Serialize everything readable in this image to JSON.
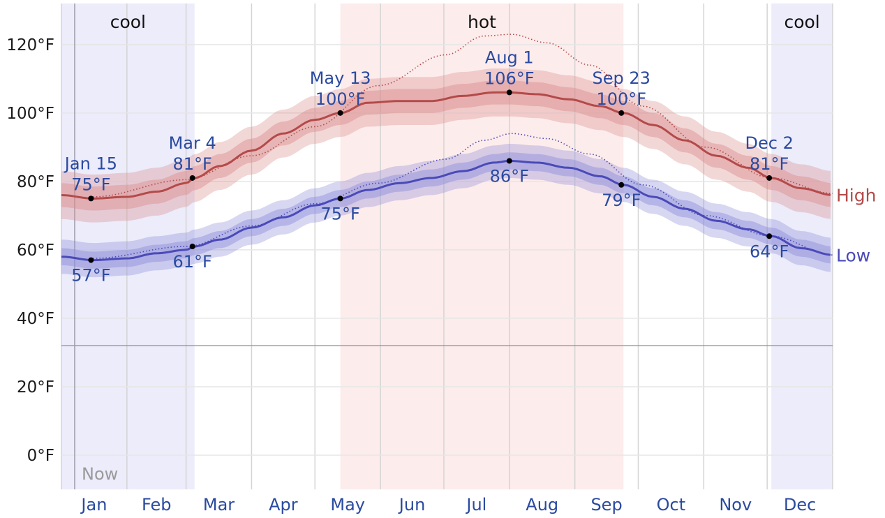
{
  "chart_data": {
    "type": "line",
    "units": "°F",
    "y_ticks": [
      0,
      20,
      40,
      60,
      80,
      100,
      120
    ],
    "y_tick_labels": [
      "0°F",
      "20°F",
      "40°F",
      "60°F",
      "80°F",
      "100°F",
      "120°F"
    ],
    "ylim": [
      -10,
      132
    ],
    "months": [
      "Jan",
      "Feb",
      "Mar",
      "Apr",
      "May",
      "Jun",
      "Jul",
      "Aug",
      "Sep",
      "Oct",
      "Nov",
      "Dec"
    ],
    "freezing_line": 32,
    "now_label": "Now",
    "now_day": 1,
    "seasons": [
      {
        "name": "cool",
        "start_day": 0,
        "end_day": 63,
        "color": "#ececfb"
      },
      {
        "name": "hot",
        "start_day": 132,
        "end_day": 266,
        "color": "#fdecec"
      },
      {
        "name": "cool",
        "start_day": 336,
        "end_day": 365,
        "color": "#ececfb"
      }
    ],
    "series": [
      {
        "name": "High",
        "color": "#b44a4a",
        "band_color": "#d98c8c",
        "days": [
          0,
          15,
          31,
          45,
          59,
          63,
          75,
          90,
          105,
          120,
          132,
          145,
          160,
          175,
          190,
          205,
          212,
          225,
          240,
          255,
          266,
          280,
          295,
          310,
          325,
          336,
          350,
          365
        ],
        "values": [
          76,
          75,
          75.5,
          77,
          79.5,
          81,
          84.5,
          89,
          94,
          98,
          100,
          103,
          103.5,
          103.5,
          105,
          106,
          106,
          105.5,
          104,
          102,
          100,
          96.5,
          92,
          87.5,
          84,
          81,
          78,
          76
        ],
        "inner_band": 3.5,
        "outer_band": 7,
        "dotted_days": [
          15,
          59,
          90,
          120,
          150,
          182,
          200,
          213,
          230,
          250,
          275,
          305,
          336,
          365
        ],
        "dotted_values": [
          75.5,
          80.5,
          87.5,
          96,
          108,
          117,
          122.5,
          123,
          120.5,
          114,
          102,
          90,
          81,
          76.5
        ]
      },
      {
        "name": "Low",
        "color": "#4a4ab8",
        "band_color": "#8c8cd9",
        "days": [
          0,
          15,
          31,
          45,
          59,
          63,
          75,
          90,
          105,
          120,
          132,
          145,
          160,
          175,
          190,
          205,
          212,
          225,
          240,
          255,
          266,
          280,
          295,
          310,
          325,
          336,
          350,
          365
        ],
        "values": [
          58,
          57,
          57.5,
          59,
          60,
          61,
          63,
          66.5,
          69.5,
          73,
          75,
          77.5,
          79.5,
          81,
          83,
          85.5,
          86,
          85.5,
          84,
          81.5,
          79,
          75.5,
          72,
          68.5,
          66,
          64,
          60.5,
          58.5
        ],
        "inner_band": 2.5,
        "outer_band": 5,
        "dotted_days": [
          15,
          59,
          90,
          120,
          150,
          182,
          200,
          213,
          230,
          250,
          275,
          305,
          336,
          365
        ],
        "dotted_values": [
          57.5,
          61,
          67,
          73.5,
          79.5,
          86.5,
          92,
          94,
          92.5,
          88,
          79,
          70,
          64,
          58.5
        ]
      }
    ],
    "annotations": [
      {
        "series": "High",
        "day": 14,
        "value": 75,
        "date": "Jan 15",
        "label": "75°F",
        "pos": "above"
      },
      {
        "series": "High",
        "day": 62,
        "value": 81,
        "date": "Mar 4",
        "label": "81°F",
        "pos": "above"
      },
      {
        "series": "High",
        "day": 132,
        "value": 100,
        "date": "May 13",
        "label": "100°F",
        "pos": "above"
      },
      {
        "series": "High",
        "day": 212,
        "value": 106,
        "date": "Aug 1",
        "label": "106°F",
        "pos": "above"
      },
      {
        "series": "High",
        "day": 265,
        "value": 100,
        "date": "Sep 23",
        "label": "100°F",
        "pos": "above"
      },
      {
        "series": "High",
        "day": 335,
        "value": 81,
        "date": "Dec 2",
        "label": "81°F",
        "pos": "above"
      },
      {
        "series": "Low",
        "day": 14,
        "value": 57,
        "label": "57°F",
        "pos": "below"
      },
      {
        "series": "Low",
        "day": 62,
        "value": 61,
        "label": "61°F",
        "pos": "below"
      },
      {
        "series": "Low",
        "day": 132,
        "value": 75,
        "label": "75°F",
        "pos": "below"
      },
      {
        "series": "Low",
        "day": 212,
        "value": 86,
        "label": "86°F",
        "pos": "below"
      },
      {
        "series": "Low",
        "day": 265,
        "value": 79,
        "label": "79°F",
        "pos": "below"
      },
      {
        "series": "Low",
        "day": 335,
        "value": 64,
        "label": "64°F",
        "pos": "below"
      }
    ],
    "grid": true
  }
}
